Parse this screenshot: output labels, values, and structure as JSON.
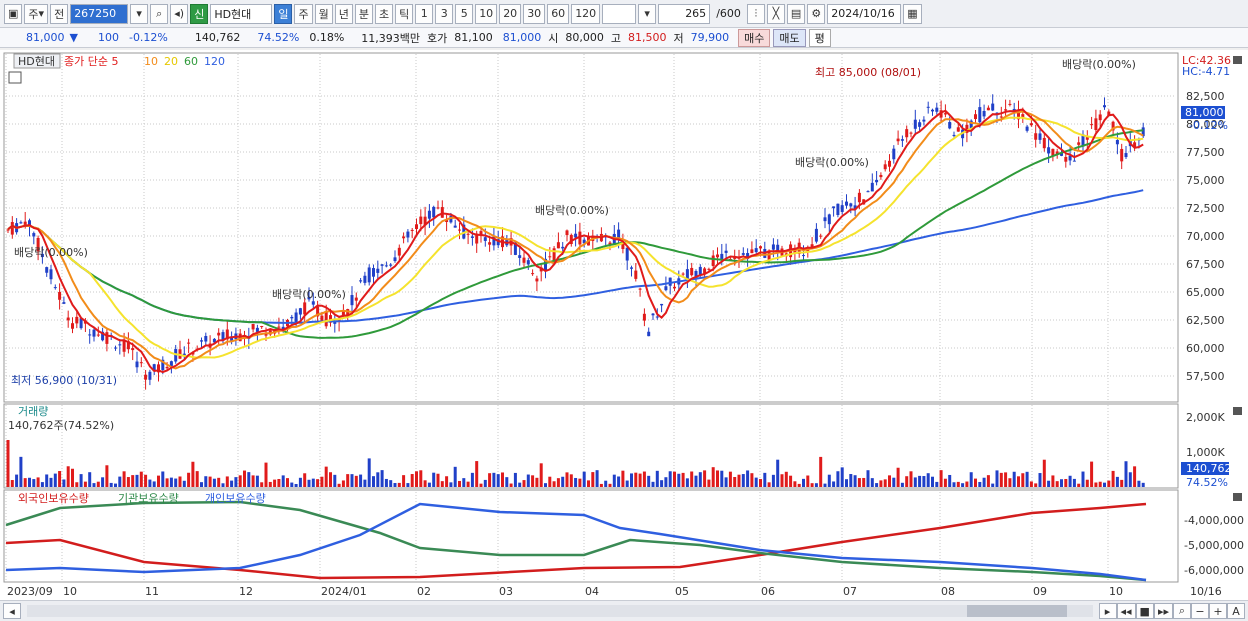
{
  "toolbar": {
    "period_labels": [
      "주",
      "전"
    ],
    "code": "267250",
    "shin": "신",
    "name": "HD현대",
    "intervals": [
      "일",
      "주",
      "월",
      "년",
      "분",
      "초",
      "틱"
    ],
    "numbers": [
      "1",
      "3",
      "5",
      "10",
      "20",
      "30",
      "60",
      "120"
    ],
    "count": "265",
    "total": "/600",
    "date": "2024/10/16"
  },
  "info": {
    "price": "81,000",
    "change": "100",
    "change_pct": "-0.12%",
    "volume": "140,762",
    "vol_pct": "74.52%",
    "turnover_pct": "0.18%",
    "amount": "11,393백만",
    "bid_label": "호가",
    "bid": "81,100",
    "bid2": "81,000",
    "open_label": "시",
    "open": "80,000",
    "high_label": "고",
    "high": "81,500",
    "low_label": "저",
    "low": "79,900",
    "buy": "매수",
    "sell": "매도",
    "eval": "평"
  },
  "legend": {
    "name": "HD현대",
    "ma_label": "종가 단순 5",
    "ma10": "10",
    "ma20": "20",
    "ma60": "60",
    "ma120": "120"
  },
  "price_axis": [
    "82,500",
    "80,000",
    "77,500",
    "75,000",
    "72,500",
    "70,000",
    "67,500",
    "65,000",
    "62,500",
    "60,000",
    "57,500"
  ],
  "lc": "LC:42.36",
  "hc": "HC:-4.71",
  "current_price_tag": "81,000",
  "current_pct_tag": "-0.12%",
  "annotations": {
    "high": "최고 85,000 (08/01)",
    "low": "최저 56,900 (10/31)",
    "dividend": "배당락(0.00%)"
  },
  "volume_panel": {
    "title": "거래량",
    "value": "140,762주(74.52%)",
    "axis": [
      "2,000K",
      "1,000K"
    ],
    "tag": "140,762",
    "tag_pct": "74.52%"
  },
  "holdings_panel": {
    "foreign": "외국인보유수량",
    "inst": "기관보유수량",
    "indiv": "개인보유수량",
    "axis": [
      "-4,000,000",
      "-5,000,000",
      "-6,000,000"
    ]
  },
  "x_axis": [
    "2023/09",
    "10",
    "11",
    "12",
    "2024/01",
    "02",
    "03",
    "04",
    "05",
    "06",
    "07",
    "08",
    "09",
    "10"
  ],
  "x_end": "10/16",
  "colors": {
    "ma5": "#e01b1b",
    "ma10": "#f28c1a",
    "ma20": "#f5e32e",
    "ma60": "#2f9a3a",
    "ma120": "#2f5fe0",
    "up": "#e01b1b",
    "down": "#2040c8"
  }
}
